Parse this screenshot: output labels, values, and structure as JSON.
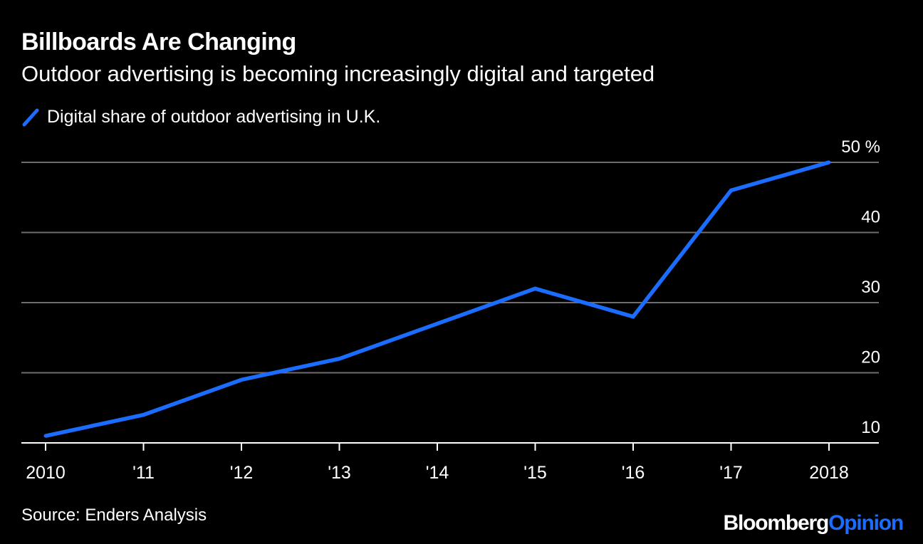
{
  "header": {
    "title": "Billboards Are Changing",
    "subtitle": "Outdoor advertising is becoming increasingly digital and targeted"
  },
  "legend": {
    "label": "Digital share of outdoor advertising in U.K.",
    "color": "#1a6dff"
  },
  "footer": {
    "source": "Source: Enders Analysis",
    "brand_primary": "Bloomberg",
    "brand_secondary": "Opinion"
  },
  "chart_data": {
    "type": "line",
    "title": "Billboards Are Changing",
    "subtitle": "Outdoor advertising is becoming increasingly digital and targeted",
    "xlabel": "",
    "ylabel": "",
    "categories": [
      "2010",
      "'11",
      "'12",
      "'13",
      "'14",
      "'15",
      "'16",
      "'17",
      "2018"
    ],
    "series": [
      {
        "name": "Digital share of outdoor advertising in U.K.",
        "color": "#1a6dff",
        "values": [
          11,
          14,
          19,
          22,
          27,
          32,
          28,
          46,
          50
        ]
      }
    ],
    "ylim": [
      10,
      50
    ],
    "yticks": [
      {
        "value": 50,
        "label": "50 %"
      },
      {
        "value": 40,
        "label": "40"
      },
      {
        "value": 30,
        "label": "30"
      },
      {
        "value": 20,
        "label": "20"
      },
      {
        "value": 10,
        "label": "10"
      }
    ],
    "grid": true,
    "legend_position": "top-left",
    "y_axis_side": "right",
    "gridline_color": "#6e6e6e",
    "axis_color": "#ffffff"
  }
}
